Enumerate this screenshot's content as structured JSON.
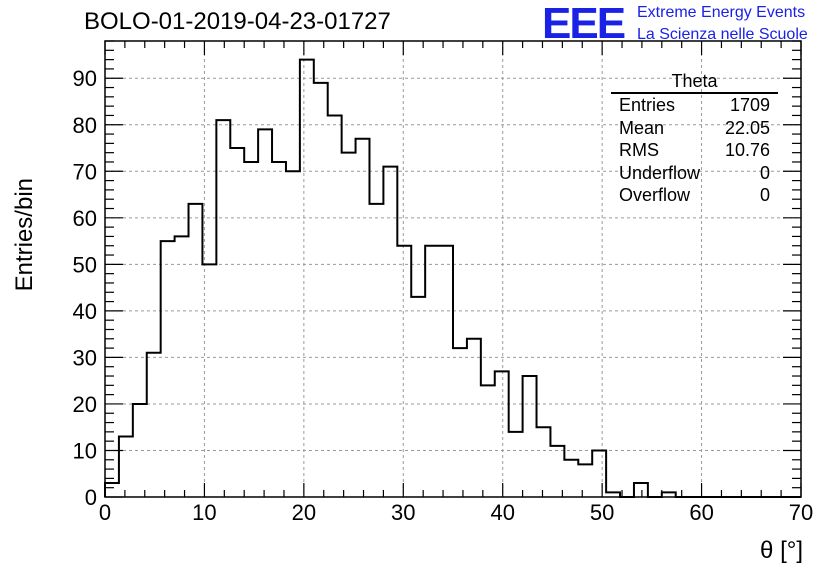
{
  "title": "BOLO-01-2019-04-23-01727",
  "logo": {
    "mark": "EEE",
    "line1": "Extreme Energy Events",
    "line2": "La Scienza nelle Scuole",
    "color": "#1a22e6"
  },
  "stats": {
    "title": "Theta",
    "rows": [
      {
        "label": "Entries",
        "value": "1709"
      },
      {
        "label": "Mean",
        "value": "22.05"
      },
      {
        "label": "RMS",
        "value": "10.76"
      },
      {
        "label": "Underflow",
        "value": "0"
      },
      {
        "label": "Overflow",
        "value": "0"
      }
    ]
  },
  "chart_data": {
    "type": "bar",
    "style": "step-histogram",
    "title": "BOLO-01-2019-04-23-01727",
    "xlabel": "θ [°]",
    "ylabel": "Entries/bin",
    "xlim": [
      0,
      70
    ],
    "ylim": [
      0,
      98
    ],
    "bin_width": 1.4,
    "xticks": [
      0,
      10,
      20,
      30,
      40,
      50,
      60,
      70
    ],
    "yticks": [
      0,
      10,
      20,
      30,
      40,
      50,
      60,
      70,
      80,
      90
    ],
    "grid": true,
    "values": [
      3,
      13,
      20,
      31,
      55,
      56,
      63,
      50,
      81,
      75,
      72,
      79,
      72,
      70,
      94,
      89,
      82,
      74,
      77,
      63,
      71,
      54,
      43,
      54,
      54,
      32,
      34,
      24,
      27,
      14,
      26,
      15,
      11,
      8,
      7,
      10,
      1,
      0,
      3,
      0,
      1,
      0,
      0,
      0,
      0,
      0,
      0,
      0,
      0,
      0
    ]
  }
}
